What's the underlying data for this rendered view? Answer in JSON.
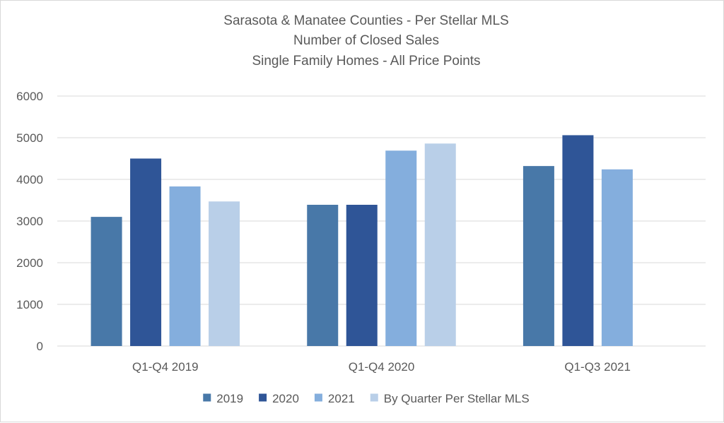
{
  "chart_data": {
    "type": "bar",
    "title_lines": [
      "Sarasota & Manatee Counties - Per Stellar MLS",
      "Number of Closed Sales",
      "Single Family Homes - All Price Points"
    ],
    "categories": [
      "Q1-Q4 2019",
      "Q1-Q4 2020",
      "Q1-Q3 2021"
    ],
    "series": [
      {
        "name": "2019",
        "color": "#4878a8",
        "values": [
          3100,
          3390,
          4320
        ]
      },
      {
        "name": "2020",
        "color": "#2f5597",
        "values": [
          4500,
          3390,
          5060
        ]
      },
      {
        "name": "2021",
        "color": "#84aedd",
        "values": [
          3830,
          4690,
          4240
        ]
      },
      {
        "name": "By Quarter Per Stellar MLS",
        "color": "#b9cfe8",
        "values": [
          3470,
          4860,
          null
        ]
      }
    ],
    "ylim": [
      0,
      6000
    ],
    "yticks": [
      "0",
      "1000",
      "2000",
      "3000",
      "4000",
      "5000",
      "6000"
    ],
    "grid": true,
    "legend_position": "bottom"
  }
}
